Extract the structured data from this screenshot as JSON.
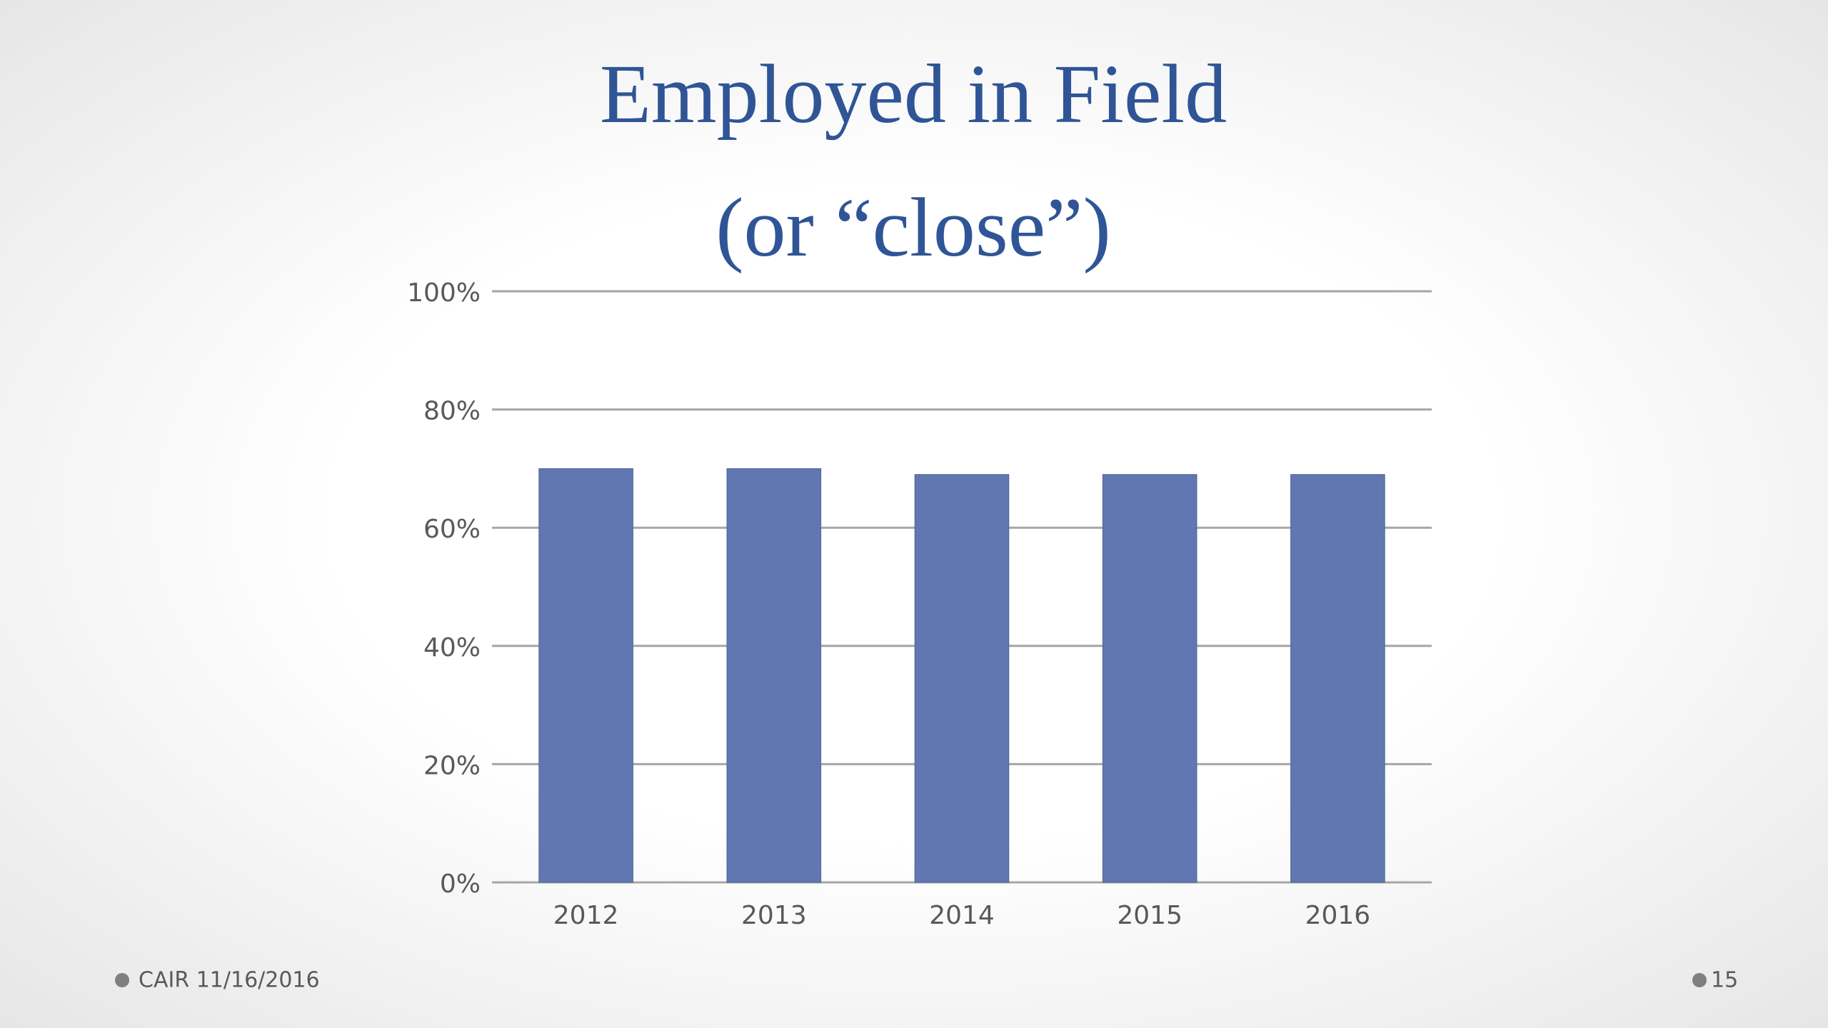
{
  "chart_data": {
    "type": "bar",
    "title": [
      "Employed in Field",
      "(or “close”)"
    ],
    "categories": [
      "2012",
      "2013",
      "2014",
      "2015",
      "2016"
    ],
    "values": [
      70,
      70,
      69,
      69,
      69
    ],
    "color": "#6177b1",
    "ylim": [
      0,
      100
    ],
    "yticks": [
      {
        "value": 0,
        "label": "0%"
      },
      {
        "value": 20,
        "label": "20%"
      },
      {
        "value": 40,
        "label": "40%"
      },
      {
        "value": 60,
        "label": "60%"
      },
      {
        "value": 80,
        "label": "80%"
      },
      {
        "value": 100,
        "label": "100%"
      }
    ],
    "grid": true
  },
  "footer": {
    "left": "CAIR 11/16/2016",
    "right": "15"
  }
}
